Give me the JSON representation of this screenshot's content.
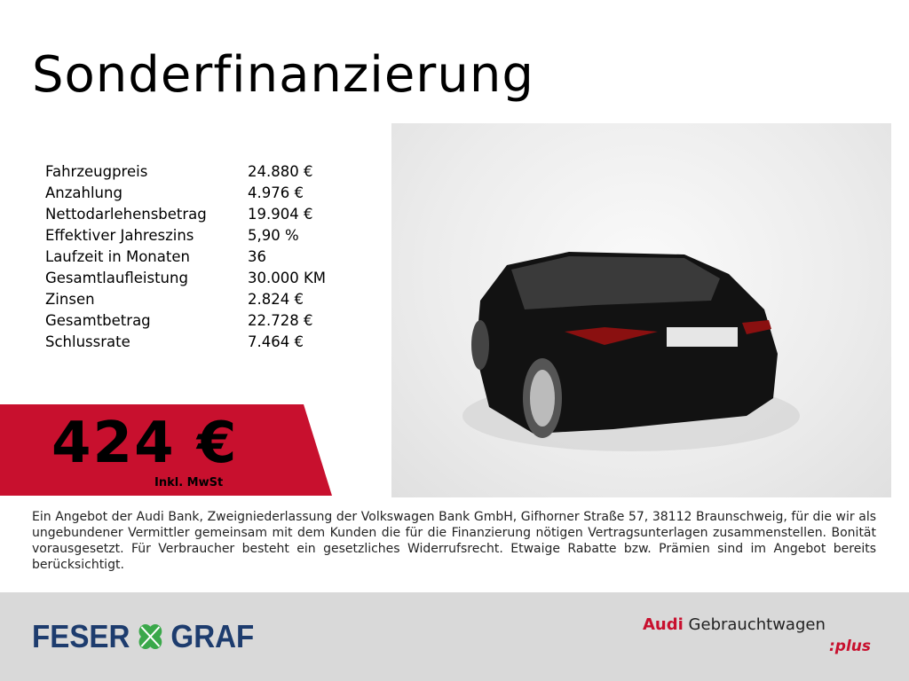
{
  "title": "Sonderfinanzierung",
  "specs": [
    {
      "label": "Fahrzeugpreis",
      "value": "24.880 €"
    },
    {
      "label": "Anzahlung",
      "value": "4.976 €"
    },
    {
      "label": "Nettodarlehensbetrag",
      "value": "19.904 €"
    },
    {
      "label": "Effektiver Jahreszins",
      "value": "5,90 %"
    },
    {
      "label": "Laufzeit in Monaten",
      "value": "36"
    },
    {
      "label": "Gesamtlaufleistung",
      "value": "30.000 KM"
    },
    {
      "label": "Zinsen",
      "value": "2.824 €"
    },
    {
      "label": "Gesamtbetrag",
      "value": "22.728 €"
    },
    {
      "label": "Schlussrate",
      "value": "7.464 €"
    }
  ],
  "price": {
    "amount": "424 €",
    "note": "Inkl. MwSt"
  },
  "disclaimer": "Ein Angebot der Audi Bank, Zweigniederlassung der Volkswagen Bank GmbH, Gifhorner Straße 57, 38112 Braunschweig, für die wir als ungebundener Vermittler gemeinsam mit dem Kunden die für die Finanzierung nötigen Vertragsunterlagen zusammenstellen. Bonität vorausgesetzt. Für Verbraucher besteht ein gesetzliches Widerrufsrecht. Etwaige Rabatte bzw. Prämien sind im Angebot bereits berücksichtigt.",
  "footer": {
    "dealer_logo": {
      "left": "FESER",
      "right": "GRAF",
      "icon": "clover-icon"
    },
    "brand": {
      "audi": "Audi",
      "text": "Gebrauchtwagen",
      "plus": ":plus"
    }
  },
  "colors": {
    "accent_red": "#c8102e",
    "dealer_blue": "#1d3c6e",
    "footer_bg": "#d9d9d9",
    "clover_green": "#3aa84a"
  }
}
